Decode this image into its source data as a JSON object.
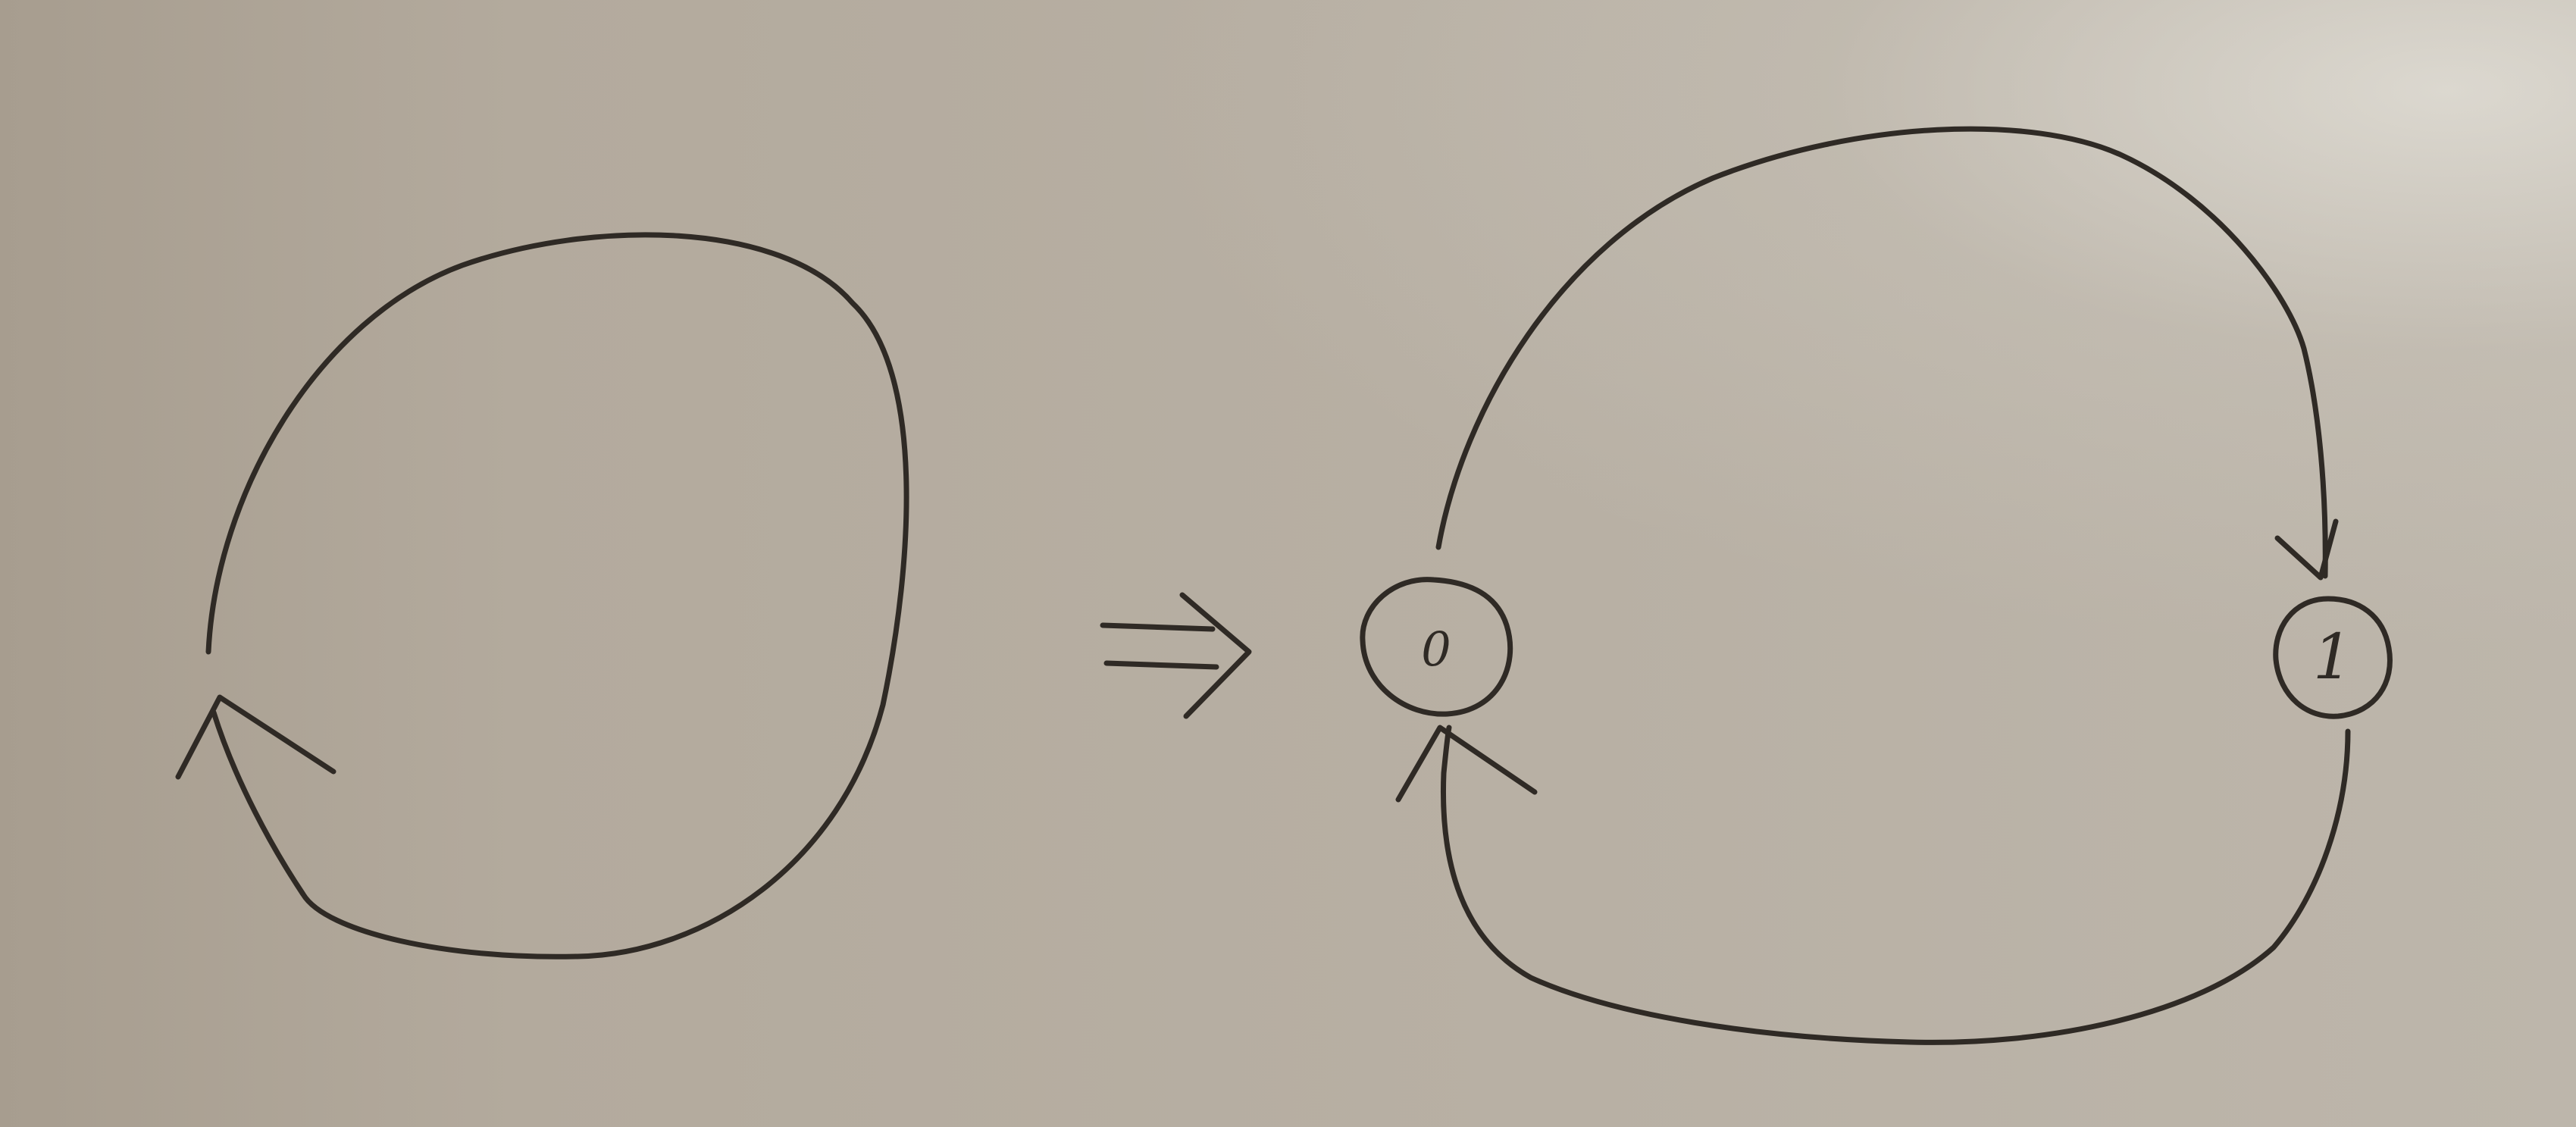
{
  "nodes": [
    {
      "id": "node-0",
      "label": "0"
    },
    {
      "id": "node-1",
      "label": "1"
    }
  ],
  "colors": {
    "paper": "#b3aa9d",
    "ink": "#2f2a25"
  },
  "icons": {
    "transform": "double-right-arrow-icon"
  }
}
